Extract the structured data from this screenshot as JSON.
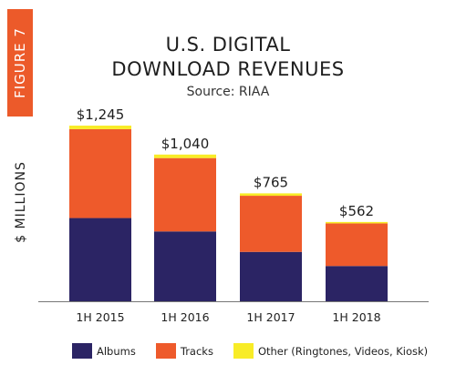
{
  "figure_tab": "FIGURE 7",
  "chart_data": {
    "type": "bar",
    "stacked": true,
    "title_line1": "U.S. DIGITAL",
    "title_line2": "DOWNLOAD REVENUES",
    "subtitle": "Source: RIAA",
    "ylabel": "$ MILLIONS",
    "categories": [
      "1H 2015",
      "1H 2016",
      "1H 2017",
      "1H 2018"
    ],
    "series": [
      {
        "name": "Albums",
        "color": "#2b2464",
        "values": [
          590,
          495,
          350,
          250
        ]
      },
      {
        "name": "Tracks",
        "color": "#ee5a2b",
        "values": [
          630,
          520,
          398,
          302
        ]
      },
      {
        "name": "Other (Ringtones, Videos, Kiosk)",
        "color": "#f8ec27",
        "values": [
          25,
          25,
          17,
          10
        ]
      }
    ],
    "totals": [
      1245,
      1040,
      765,
      562
    ],
    "total_labels": [
      "$1,245",
      "$1,040",
      "$765",
      "$562"
    ],
    "ylim": [
      0,
      1400
    ],
    "grid": false,
    "legend_position": "bottom"
  }
}
